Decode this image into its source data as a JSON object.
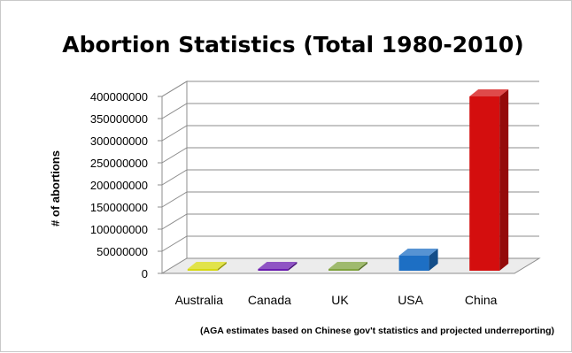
{
  "chart_data": {
    "type": "bar",
    "title": "Abortion Statistics (Total 1980-2010)",
    "ylabel": "# of abortions",
    "xlabel": "",
    "note": "(AGA estimates based on Chinese gov't statistics and projected underreporting)",
    "categories": [
      "Australia",
      "Canada",
      "UK",
      "USA",
      "China"
    ],
    "values": [
      2000000,
      3000000,
      5000000,
      40000000,
      400000000
    ],
    "colors": [
      "#d7d90f",
      "#6a1bb0",
      "#7fa33d",
      "#1d6fc4",
      "#d40e0e"
    ],
    "ylim": [
      0,
      400000000
    ],
    "yticks": [
      "0",
      "50000000",
      "100000000",
      "150000000",
      "200000000",
      "250000000",
      "300000000",
      "350000000",
      "400000000"
    ],
    "grid": true,
    "style": "3d-column"
  }
}
